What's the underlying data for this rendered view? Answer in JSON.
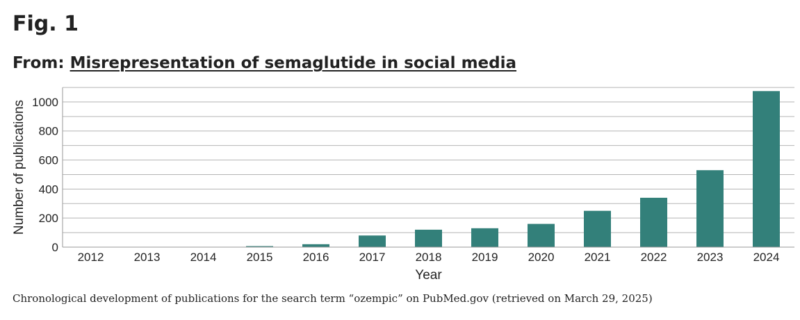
{
  "figure": {
    "label": "Fig. 1",
    "from_prefix": "From:",
    "article_title": "Misrepresentation of semaglutide in social media",
    "caption": "Chronological development of publications for the search term “ozempic” on PubMed.gov (retrieved on March 29, 2025)"
  },
  "colors": {
    "bar": "#33807a",
    "grid": "#b5b5b5",
    "text": "#222222"
  },
  "chart_data": {
    "type": "bar",
    "categories": [
      "2012",
      "2013",
      "2014",
      "2015",
      "2016",
      "2017",
      "2018",
      "2019",
      "2020",
      "2021",
      "2022",
      "2023",
      "2024"
    ],
    "values": [
      0,
      0,
      1,
      7,
      20,
      80,
      120,
      130,
      160,
      250,
      340,
      530,
      1075
    ],
    "xlabel": "Year",
    "ylabel": "Number of publications",
    "ylim": [
      0,
      1100
    ],
    "yticks": [
      0,
      200,
      400,
      600,
      800,
      1000
    ],
    "grid": true,
    "grid_step": 100
  }
}
